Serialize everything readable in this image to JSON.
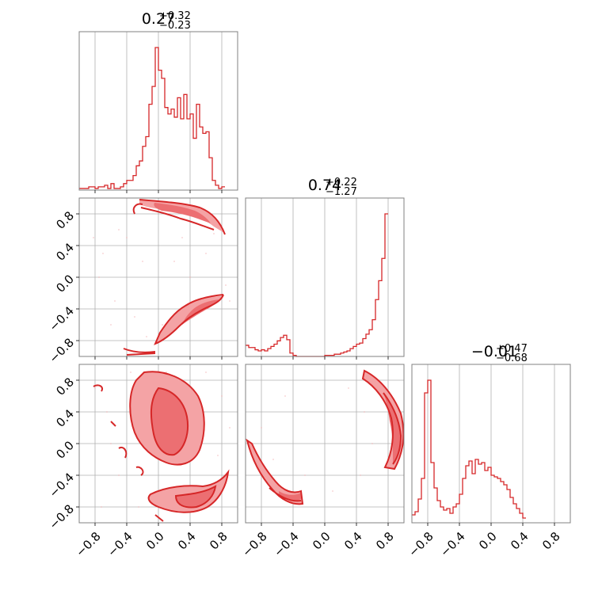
{
  "figure": {
    "type": "corner_plot",
    "color": "#d62728",
    "fill_color": "#f4a3a5",
    "grid": true,
    "tick_values": [
      -0.8,
      -0.4,
      0.0,
      0.4,
      0.8
    ],
    "tick_labels": [
      "−0.8",
      "−0.4",
      "0.0",
      "0.4",
      "0.8"
    ]
  },
  "titles": [
    {
      "median": "0.27",
      "plus": "+0.32",
      "minus": "−0.23"
    },
    {
      "median": "0.74",
      "plus": "+0.22",
      "minus": "−1.27"
    },
    {
      "median": "−0.01",
      "plus": "+0.47",
      "minus": "−0.68"
    }
  ],
  "chart_data": [
    {
      "type": "histogram",
      "panel": "param1-marginal",
      "xlim": [
        -1,
        1
      ],
      "bin_edges_start": -1.0,
      "bin_width": 0.04,
      "counts": [
        1,
        1,
        1,
        2,
        2,
        1,
        2,
        2,
        3,
        1,
        4,
        1,
        1,
        2,
        4,
        6,
        6,
        9,
        15,
        18,
        27,
        33,
        53,
        64,
        88,
        74,
        69,
        51,
        47,
        50,
        45,
        57,
        44,
        59,
        44,
        47,
        32,
        53,
        39,
        35,
        36,
        20,
        6,
        3,
        1,
        2
      ]
    },
    {
      "type": "histogram",
      "panel": "param2-marginal",
      "xlim": [
        -1,
        1
      ],
      "bin_edges_start": -1.0,
      "bin_width": 0.04,
      "counts": [
        10,
        8,
        8,
        6,
        5,
        6,
        5,
        7,
        9,
        11,
        14,
        17,
        19,
        15,
        3,
        1,
        0,
        0,
        0,
        0,
        0,
        0,
        0,
        0,
        0,
        1,
        1,
        1,
        2,
        2,
        3,
        4,
        5,
        7,
        9,
        11,
        12,
        16,
        20,
        24,
        33,
        51,
        68,
        88,
        128
      ]
    },
    {
      "type": "histogram",
      "panel": "param3-marginal",
      "xlim": [
        -1,
        1
      ],
      "bin_edges_start": -1.0,
      "bin_width": 0.04,
      "counts": [
        5,
        7,
        15,
        28,
        82,
        90,
        38,
        22,
        14,
        10,
        8,
        9,
        6,
        10,
        12,
        18,
        28,
        36,
        39,
        31,
        40,
        37,
        38,
        33,
        35,
        30,
        29,
        28,
        26,
        24,
        21,
        16,
        12,
        9,
        6,
        3
      ]
    },
    {
      "type": "contour",
      "panel": "param1-vs-param2",
      "x_param": "param1",
      "y_param": "param2",
      "xlim": [
        -1,
        1
      ],
      "ylim": [
        -1,
        1
      ],
      "modes": [
        {
          "region": "upper arc",
          "x_range": [
            -0.25,
            0.8
          ],
          "y_range": [
            0.55,
            1.0
          ]
        },
        {
          "region": "lower band",
          "x_range": [
            -0.45,
            0.82
          ],
          "y_range": [
            -0.98,
            -0.25
          ]
        }
      ]
    },
    {
      "type": "contour",
      "panel": "param1-vs-param3",
      "x_param": "param1",
      "y_param": "param3",
      "xlim": [
        -1,
        1
      ],
      "ylim": [
        -1,
        1
      ],
      "modes": [
        {
          "region": "central cluster",
          "x_range": [
            -0.45,
            0.5
          ],
          "y_range": [
            -0.45,
            0.85
          ]
        },
        {
          "region": "lower arc",
          "x_range": [
            -0.05,
            0.95
          ],
          "y_range": [
            -0.95,
            -0.4
          ]
        }
      ]
    },
    {
      "type": "contour",
      "panel": "param2-vs-param3",
      "x_param": "param2",
      "y_param": "param3",
      "xlim": [
        -1,
        1
      ],
      "ylim": [
        -1,
        1
      ],
      "modes": [
        {
          "region": "right arc",
          "x_range": [
            0.5,
            1.0
          ],
          "y_range": [
            -0.35,
            0.9
          ]
        },
        {
          "region": "lower-left arc",
          "x_range": [
            -1.0,
            -0.25
          ],
          "y_range": [
            -0.95,
            0.05
          ]
        }
      ]
    }
  ]
}
